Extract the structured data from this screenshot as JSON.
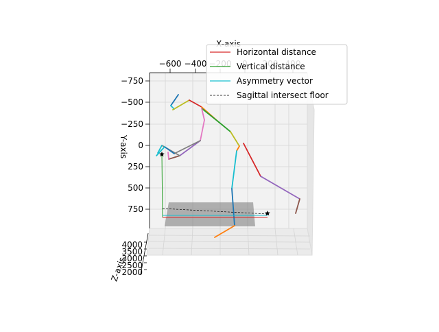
{
  "chart_data": {
    "type": "line",
    "view": "3d",
    "axes": {
      "x": {
        "label": "X-axis",
        "ticks": [
          "−600",
          "−400",
          "−200",
          "0",
          "200",
          "400"
        ]
      },
      "y": {
        "label": "Y-axis",
        "ticks": [
          "−750",
          "−500",
          "−250",
          "0",
          "250",
          "500",
          "750"
        ]
      },
      "z": {
        "label": "Z-axis",
        "ticks": [
          "4000",
          "3500",
          "3000",
          "2500",
          "2000"
        ]
      }
    },
    "legend": {
      "position": "top-right",
      "entries": [
        {
          "label": "Horizontal distance",
          "color": "#d62728",
          "style": "solid"
        },
        {
          "label": "Vertical distance",
          "color": "#2ca02c",
          "style": "solid"
        },
        {
          "label": "Asymmetry vector",
          "color": "#17becf",
          "style": "solid"
        },
        {
          "label": "Sagittal intersect floor",
          "color": "#000000",
          "style": "dashed"
        }
      ]
    },
    "grid": true,
    "floor_plane_color": "#808080",
    "skeleton_colors": [
      "#1f77b4",
      "#ff7f0e",
      "#2ca02c",
      "#d62728",
      "#9467bd",
      "#8c564b",
      "#e377c2",
      "#7f7f7f",
      "#bcbd22",
      "#17becf"
    ]
  }
}
